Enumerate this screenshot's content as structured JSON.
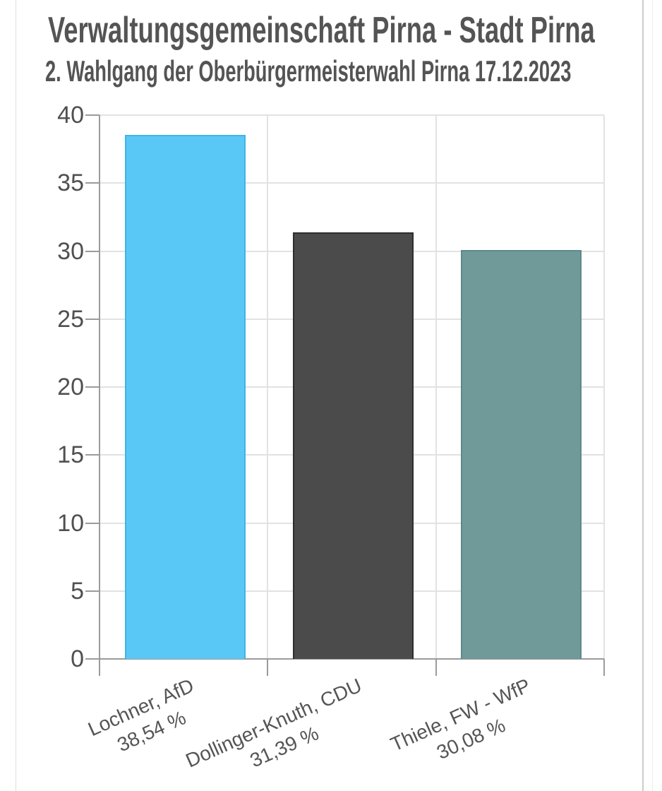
{
  "chart_data": {
    "type": "bar",
    "title": "Verwaltungsgemeinschaft Pirna - Stadt Pirna",
    "subtitle": "2. Wahlgang der Oberbürgermeisterwahl Pirna 17.12.2023",
    "categories": [
      "Lochner, AfD",
      "Dollinger-Knuth, CDU",
      "Thiele, FW - WfP"
    ],
    "value_labels": [
      "38,54 %",
      "31,39 %",
      "30,08 %"
    ],
    "values": [
      38.54,
      31.39,
      30.08
    ],
    "bar_colors": [
      "#5AC8F7",
      "#4B4B4B",
      "#6F9A99"
    ],
    "bar_border_colors": [
      "#41b4e4",
      "#2e2e2e",
      "#5e8a89"
    ],
    "ylim": [
      0,
      40
    ],
    "ytick_step": 5,
    "ytick_labels": [
      "0",
      "5",
      "10",
      "15",
      "20",
      "25",
      "30",
      "35",
      "40"
    ],
    "grid": true,
    "legend": "none",
    "xlabel": "",
    "ylabel": "",
    "text_color": "#545454",
    "axis_color": "#9b9b9b",
    "grid_color": "#e2e2e2"
  }
}
